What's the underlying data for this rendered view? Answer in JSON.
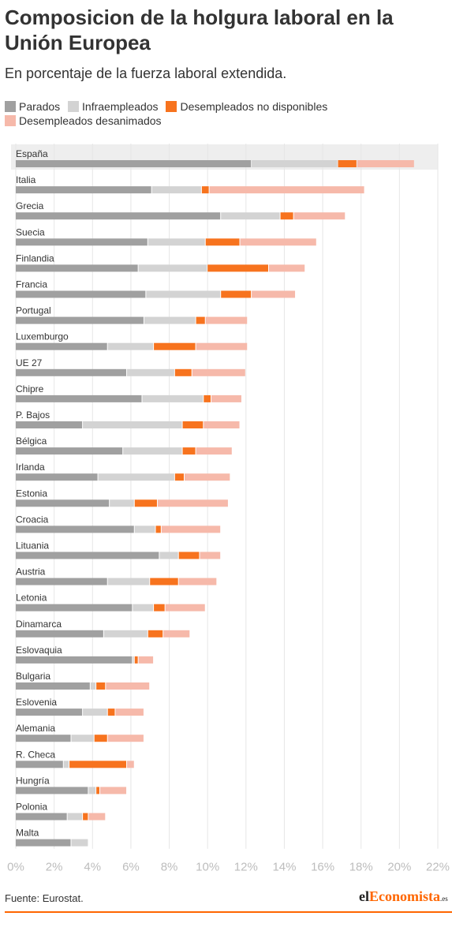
{
  "header": {
    "title": "Composicion de la holgura laboral en la Unión Europea",
    "subtitle": "En porcentaje de la fuerza laboral extendida."
  },
  "legend": [
    {
      "label": "Parados",
      "color": "#a0a0a0"
    },
    {
      "label": "Infraempleados",
      "color": "#d3d3d3"
    },
    {
      "label": "Desempleados no disponibles",
      "color": "#f7731e"
    },
    {
      "label": "Desempleados desanimados",
      "color": "#f6b9aa"
    }
  ],
  "chart_data": {
    "type": "bar",
    "orientation": "horizontal",
    "stacked": true,
    "title": "Composicion de la holgura laboral en la Unión Europea",
    "subtitle": "En porcentaje de la fuerza laboral extendida.",
    "x_ticks": [
      "0%",
      "2%",
      "4%",
      "6%",
      "8%",
      "10%",
      "12%",
      "14%",
      "16%",
      "18%",
      "20%",
      "22%"
    ],
    "xlim": [
      0,
      22
    ],
    "grid": true,
    "legend_position": "top",
    "highlight": "España",
    "categories": [
      "España",
      "Italia",
      "Grecia",
      "Suecia",
      "Finlandia",
      "Francia",
      "Portugal",
      "Luxemburgo",
      "UE 27",
      "Chipre",
      "P. Bajos",
      "Bélgica",
      "Irlanda",
      "Estonia",
      "Croacia",
      "Lituania",
      "Austria",
      "Letonia",
      "Dinamarca",
      "Eslovaquia",
      "Bulgaria",
      "Eslovenia",
      "Alemania",
      "R. Checa",
      "Hungría",
      "Polonia",
      "Malta"
    ],
    "series": [
      {
        "name": "Parados",
        "color": "#a0a0a0",
        "values": [
          12.3,
          7.1,
          10.7,
          6.9,
          6.4,
          6.8,
          6.7,
          4.8,
          5.8,
          6.6,
          3.5,
          5.6,
          4.3,
          4.9,
          6.2,
          7.5,
          4.8,
          6.1,
          4.6,
          6.1,
          3.9,
          3.5,
          2.9,
          2.5,
          3.8,
          2.7,
          2.9
        ]
      },
      {
        "name": "Infraempleados",
        "color": "#d3d3d3",
        "values": [
          4.5,
          2.6,
          3.1,
          3.0,
          3.6,
          3.9,
          2.7,
          2.4,
          2.5,
          3.2,
          5.2,
          3.1,
          4.0,
          1.3,
          1.1,
          1.0,
          2.2,
          1.1,
          2.3,
          0.1,
          0.3,
          1.3,
          1.2,
          0.3,
          0.4,
          0.8,
          0.9
        ]
      },
      {
        "name": "Desempleados no disponibles",
        "color": "#f7731e",
        "values": [
          1.0,
          0.4,
          0.7,
          1.8,
          3.2,
          1.6,
          0.5,
          2.2,
          0.9,
          0.4,
          1.1,
          0.7,
          0.5,
          1.2,
          0.3,
          1.1,
          1.5,
          0.6,
          0.8,
          0.2,
          0.5,
          0.4,
          0.7,
          3.0,
          0.2,
          0.3,
          0
        ]
      },
      {
        "name": "Desempleados desanimados",
        "color": "#f6b9aa",
        "values": [
          3.0,
          8.1,
          2.7,
          4.0,
          1.9,
          2.3,
          2.2,
          2.7,
          2.8,
          1.6,
          1.9,
          1.9,
          2.4,
          3.7,
          3.1,
          1.1,
          2.0,
          2.1,
          1.4,
          0.8,
          2.3,
          1.5,
          1.9,
          0.4,
          1.4,
          0.9,
          0
        ]
      }
    ]
  },
  "footer": {
    "source": "Fuente: Eurostat.",
    "logo": {
      "prefix": "el",
      "accent": "Economista",
      "suffix": ".es"
    }
  }
}
